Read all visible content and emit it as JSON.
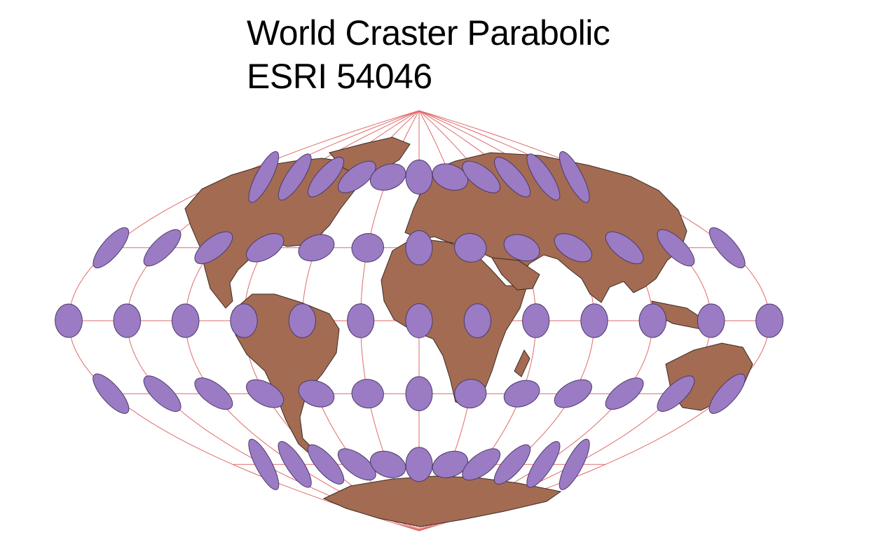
{
  "title": {
    "line1": "World Craster Parabolic",
    "line2": "ESRI 54046"
  },
  "colors": {
    "background": "#ffffff",
    "land": "#a36b52",
    "land_border": "#3a2c26",
    "graticule": "#e06a6a",
    "indicatrix_fill": "#9b7bc4",
    "indicatrix_stroke": "#4a3a6a",
    "text": "#000000"
  },
  "map": {
    "projection": "Craster Parabolic",
    "graticule_shown": true,
    "meridians_deg": [
      -180,
      -150,
      -120,
      -90,
      -60,
      -30,
      0,
      30,
      60,
      90,
      120,
      150,
      180
    ],
    "parallels_deg": [
      -90,
      -60,
      -30,
      0,
      30,
      60,
      90
    ],
    "tissot_latitudes_deg": [
      -60,
      -30,
      0,
      30,
      60
    ],
    "tissot_longitudes_deg": [
      -180,
      -150,
      -120,
      -90,
      -60,
      -30,
      0,
      30,
      60,
      90,
      120,
      150,
      180
    ]
  }
}
